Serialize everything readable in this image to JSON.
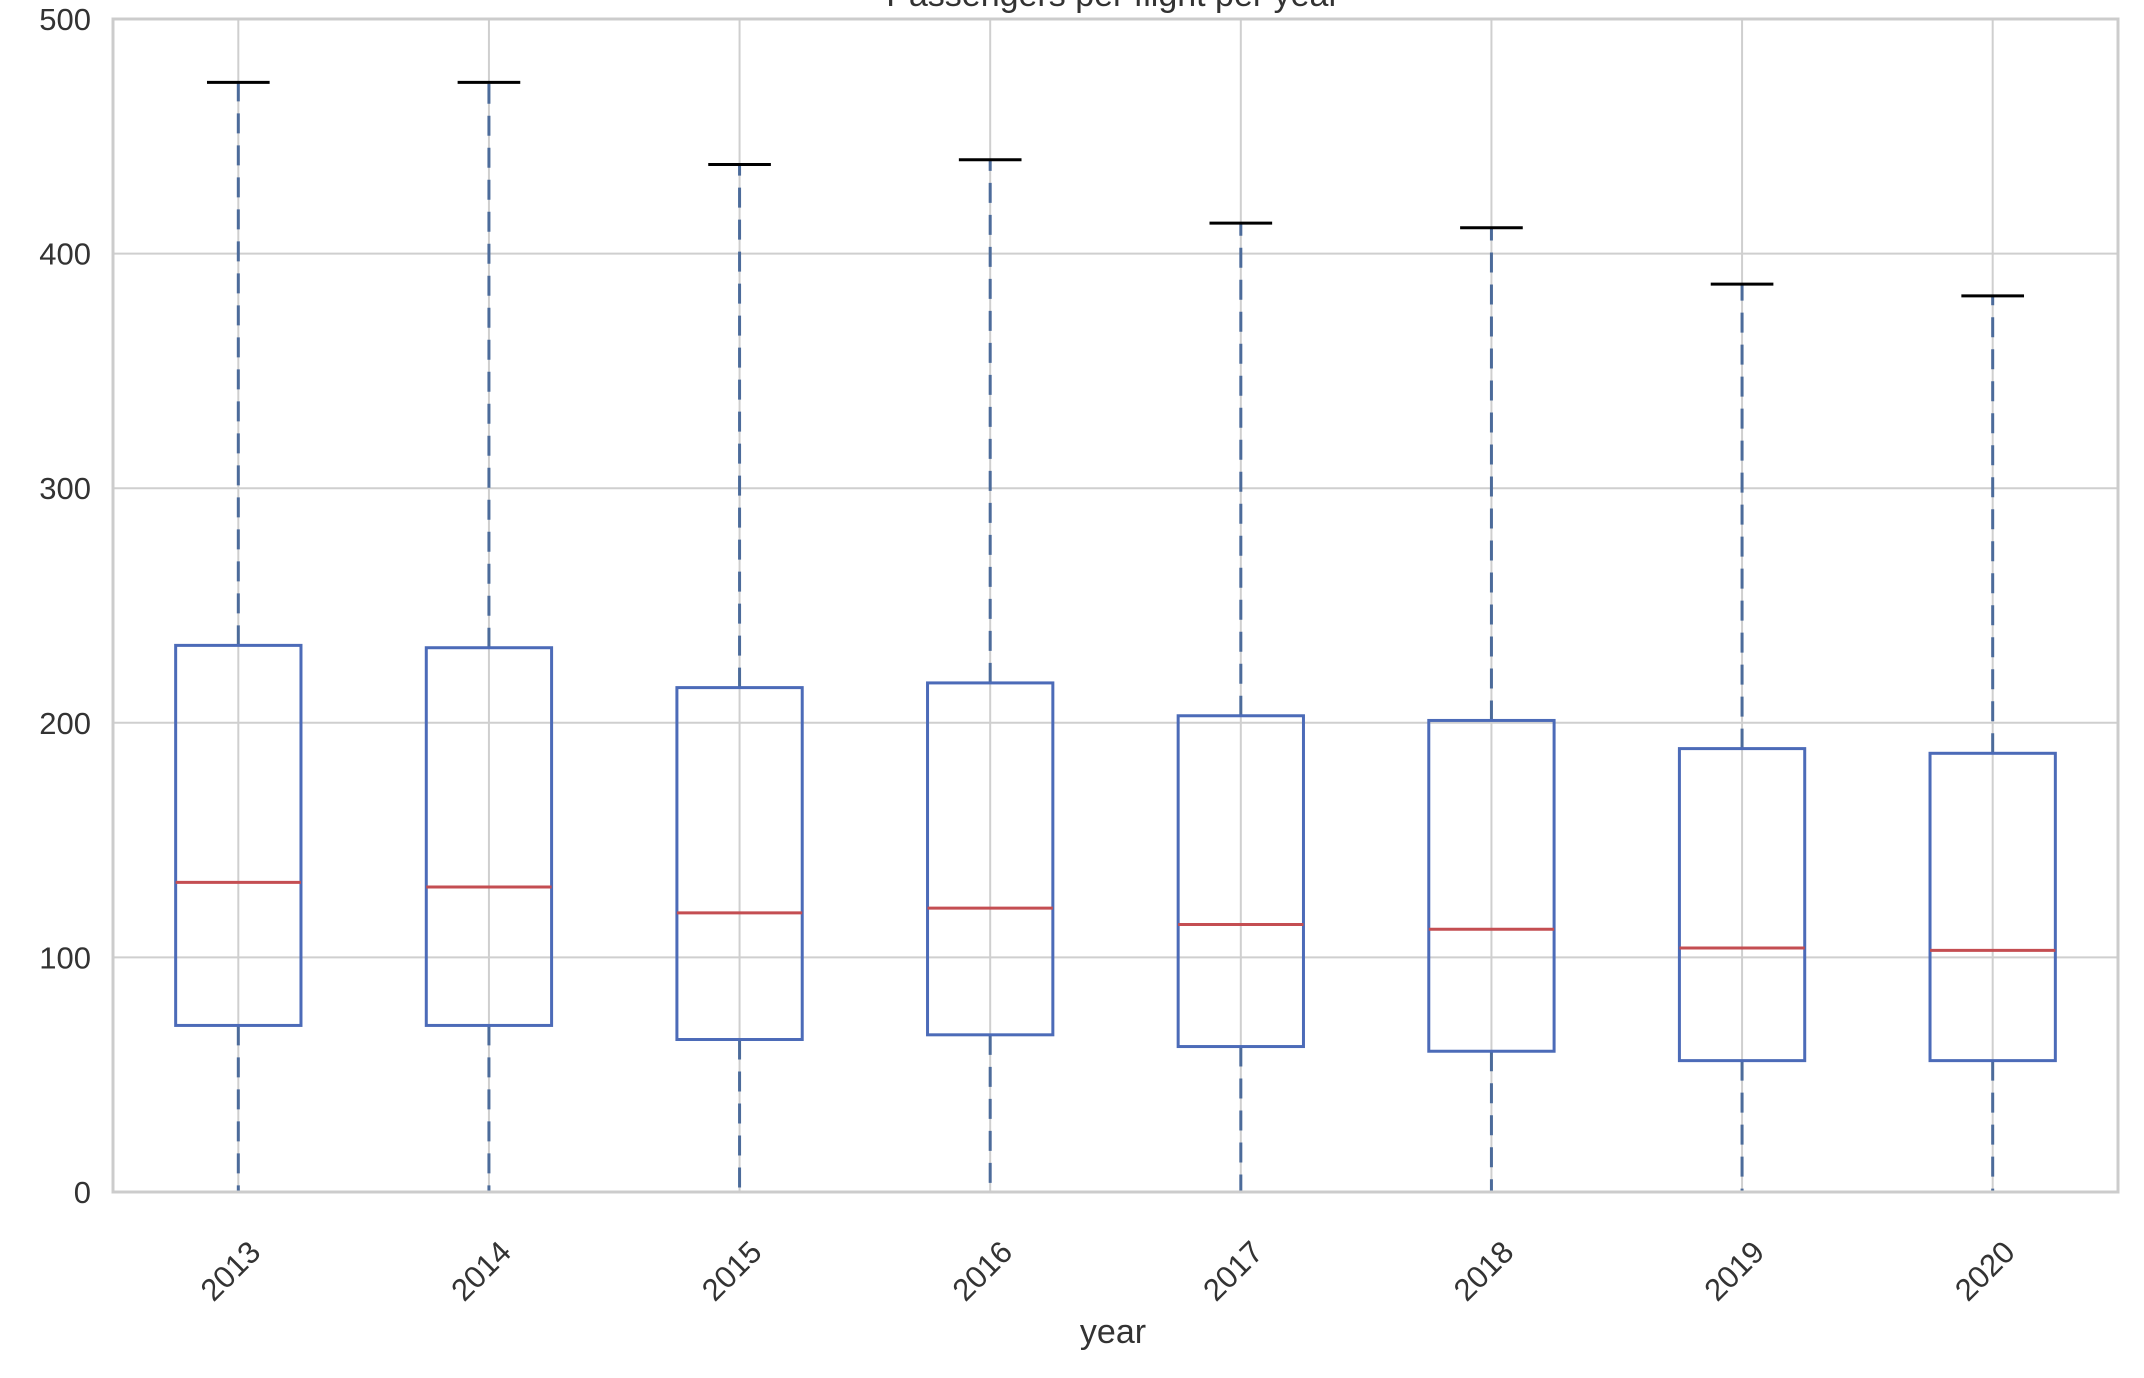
{
  "chart_data": {
    "type": "boxplot",
    "title": "Passengers per flight per year",
    "xlabel": "year",
    "ylabel": "",
    "ylim": [
      0,
      500
    ],
    "yticks": [
      0,
      100,
      200,
      300,
      400,
      500
    ],
    "grid": true,
    "categories": [
      "2013",
      "2014",
      "2015",
      "2016",
      "2017",
      "2018",
      "2019",
      "2020"
    ],
    "boxes": [
      {
        "category": "2013",
        "whisker_low": 0,
        "q1": 71,
        "median": 132,
        "q3": 233,
        "whisker_high": 473
      },
      {
        "category": "2014",
        "whisker_low": 0,
        "q1": 71,
        "median": 130,
        "q3": 232,
        "whisker_high": 473
      },
      {
        "category": "2015",
        "whisker_low": 0,
        "q1": 65,
        "median": 119,
        "q3": 215,
        "whisker_high": 438
      },
      {
        "category": "2016",
        "whisker_low": 0,
        "q1": 67,
        "median": 121,
        "q3": 217,
        "whisker_high": 440
      },
      {
        "category": "2017",
        "whisker_low": 0,
        "q1": 62,
        "median": 114,
        "q3": 203,
        "whisker_high": 413
      },
      {
        "category": "2018",
        "whisker_low": 0,
        "q1": 60,
        "median": 112,
        "q3": 201,
        "whisker_high": 411
      },
      {
        "category": "2019",
        "whisker_low": 0,
        "q1": 56,
        "median": 104,
        "q3": 189,
        "whisker_high": 387
      },
      {
        "category": "2020",
        "whisker_low": 0,
        "q1": 56,
        "median": 103,
        "q3": 187,
        "whisker_high": 382
      }
    ],
    "colors": {
      "box": "#4c6bb8",
      "median": "#c44e52",
      "whisker": "#4c6b9a",
      "cap": "#000000",
      "grid": "#cfcfcf",
      "frame": "#cccccc",
      "background": "#ffffff"
    }
  }
}
